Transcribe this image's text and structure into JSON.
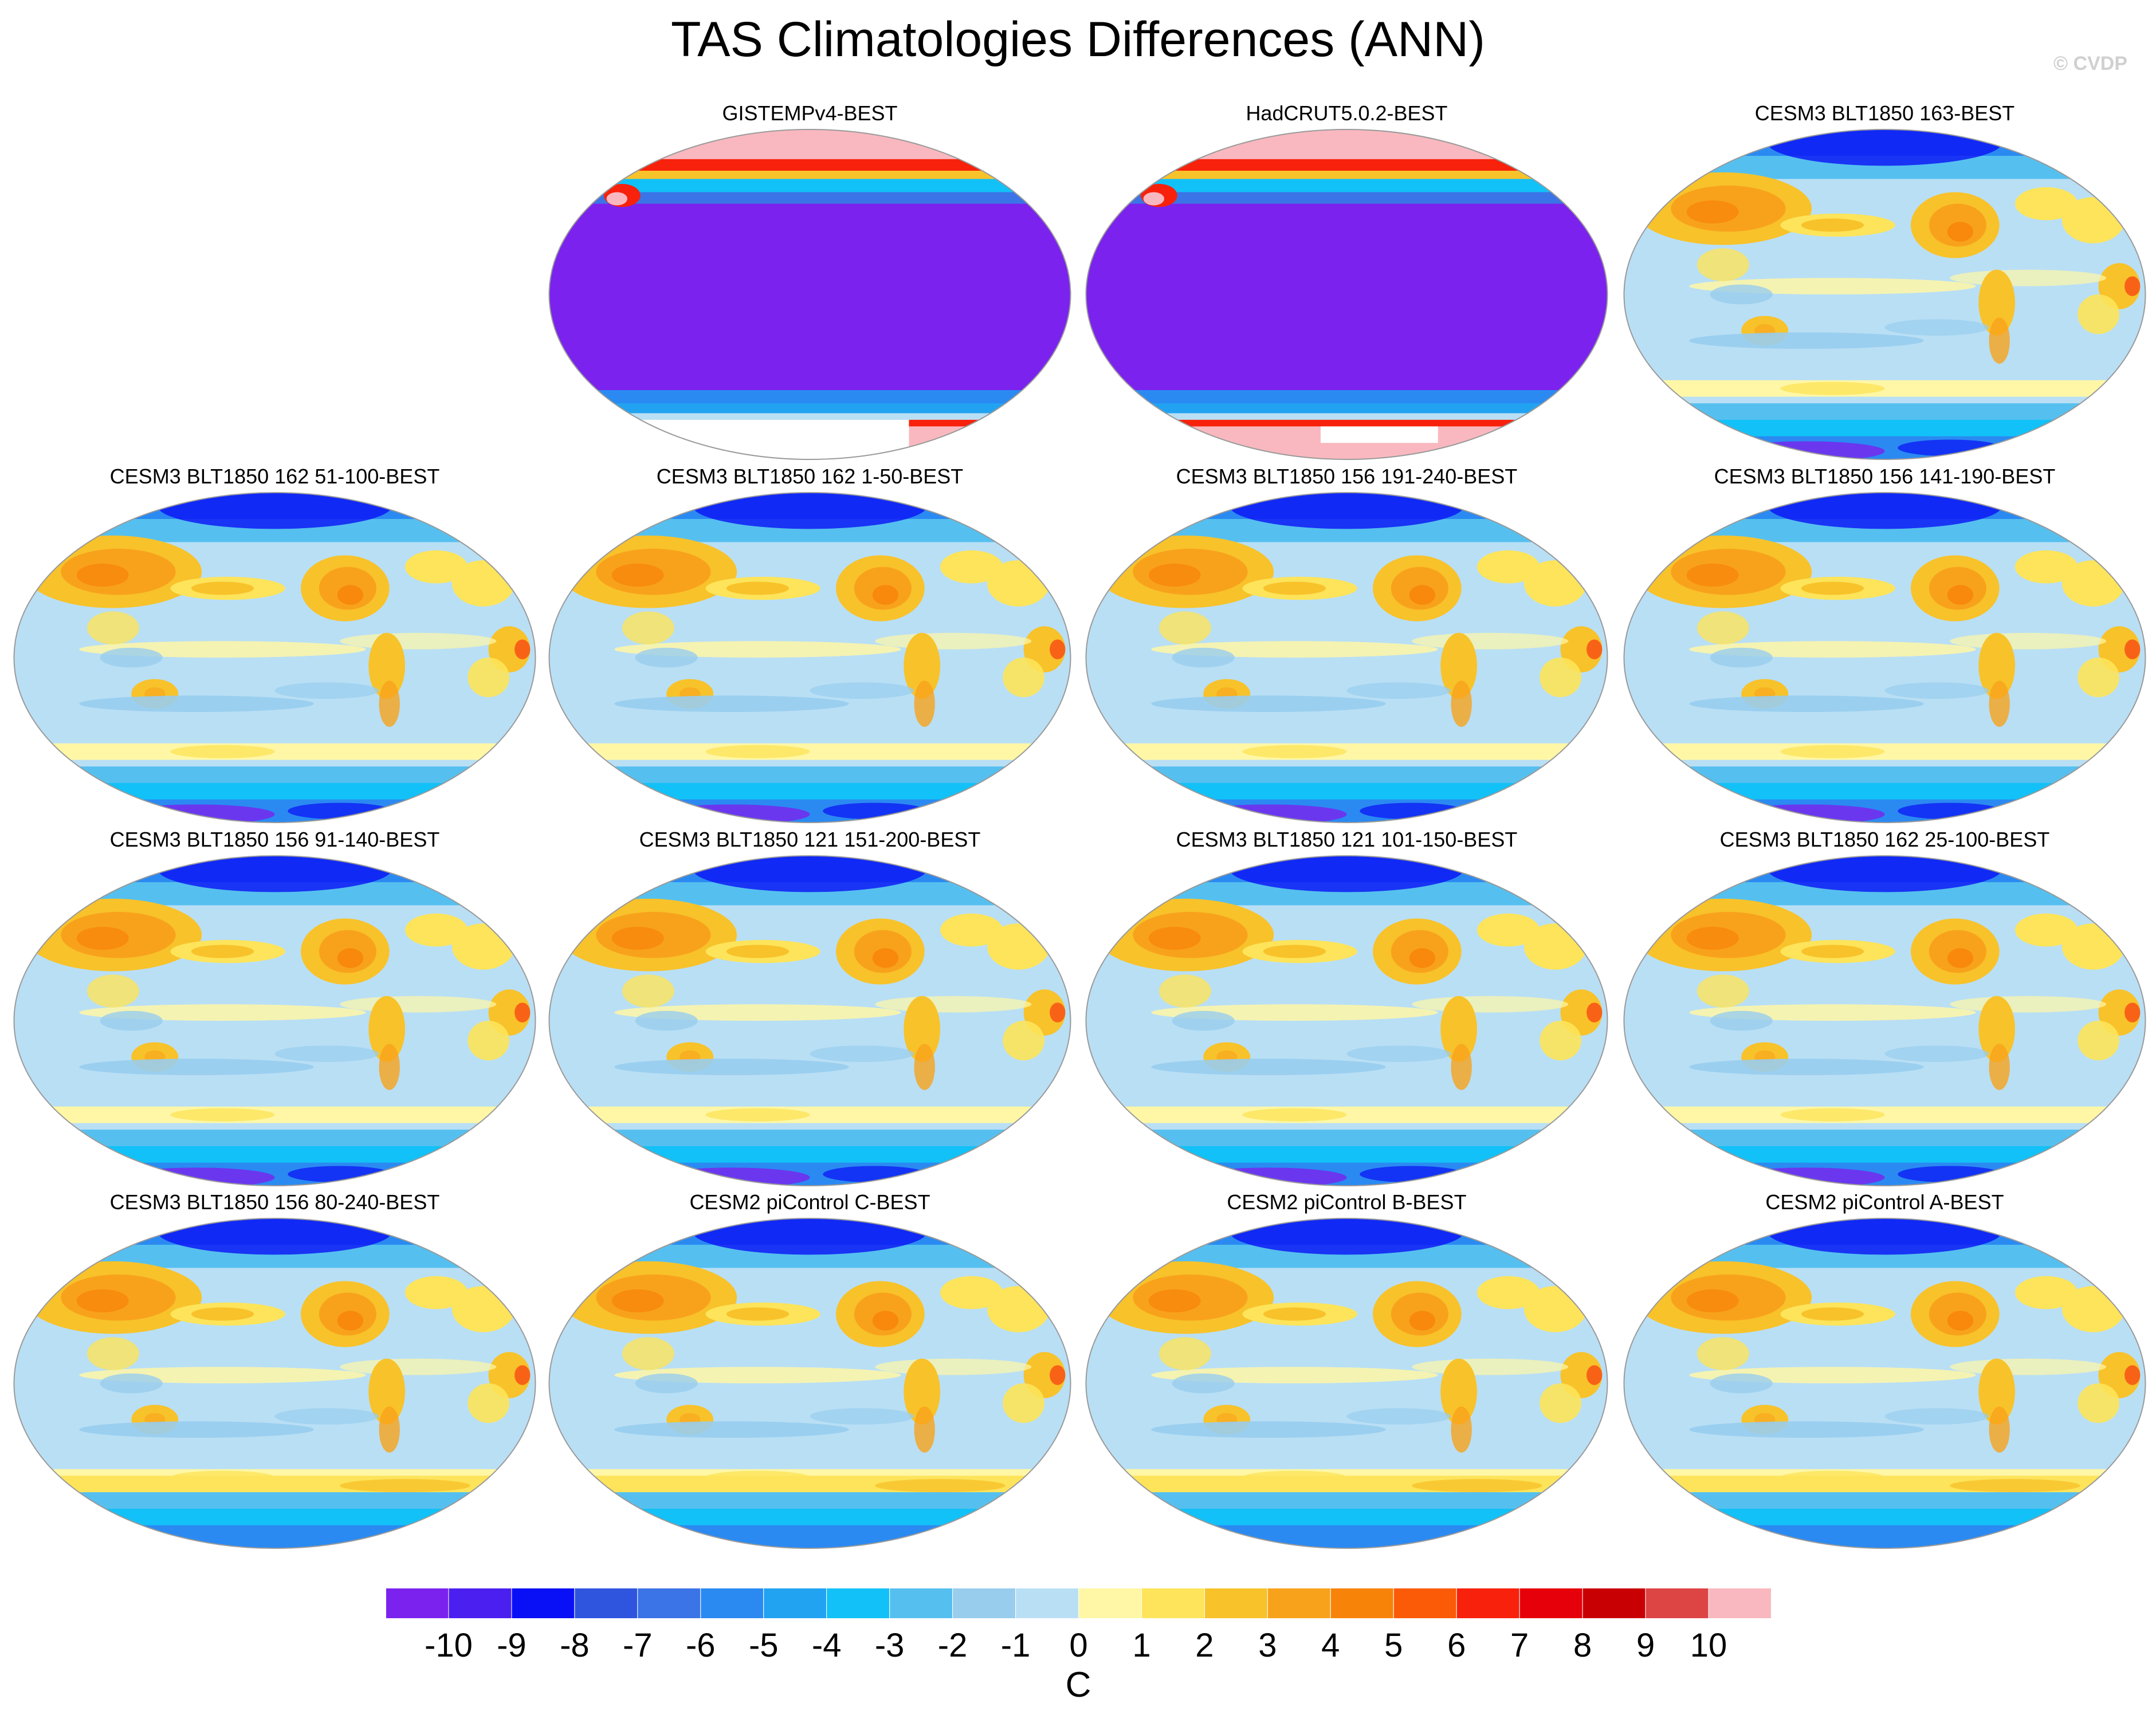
{
  "title": "TAS Climatologies Differences (ANN)",
  "copyright": "© CVDP",
  "chart_data": {
    "type": "heatmap",
    "title": "TAS Climatologies Differences (ANN)",
    "projection": "global map panels",
    "panels": [
      {
        "label": "GISTEMPv4-BEST",
        "style": "mask"
      },
      {
        "label": "HadCRUT5.0.2-BEST",
        "style": "mask"
      },
      {
        "label": "CESM3 BLT1850 163-BEST",
        "style": "model"
      },
      {
        "label": "CESM3 BLT1850 162 51-100-BEST",
        "style": "model"
      },
      {
        "label": "CESM3 BLT1850 162 1-50-BEST",
        "style": "model"
      },
      {
        "label": "CESM3 BLT1850 156 191-240-BEST",
        "style": "model"
      },
      {
        "label": "CESM3 BLT1850 156 141-190-BEST",
        "style": "model"
      },
      {
        "label": "CESM3 BLT1850 156 91-140-BEST",
        "style": "model"
      },
      {
        "label": "CESM3 BLT1850 121 151-200-BEST",
        "style": "model"
      },
      {
        "label": "CESM3 BLT1850 121 101-150-BEST",
        "style": "model"
      },
      {
        "label": "CESM3 BLT1850 162 25-100-BEST",
        "style": "model"
      },
      {
        "label": "CESM3 BLT1850 156 80-240-BEST",
        "style": "model"
      },
      {
        "label": "CESM2 piControl C-BEST",
        "style": "model"
      },
      {
        "label": "CESM2 piControl B-BEST",
        "style": "model"
      },
      {
        "label": "CESM2 piControl A-BEST",
        "style": "model"
      }
    ],
    "colorbar": {
      "units": "C",
      "tick_labels": [
        "-10",
        "-9",
        "-8",
        "-7",
        "-6",
        "-5",
        "-4",
        "-3",
        "-2",
        "-1",
        "0",
        "1",
        "2",
        "3",
        "4",
        "5",
        "6",
        "7",
        "8",
        "9",
        "10"
      ],
      "colors": [
        "#7b22ee",
        "#4b1ff0",
        "#0a10f5",
        "#2f55df",
        "#3b74e6",
        "#2a8af2",
        "#22a3f2",
        "#12c1f7",
        "#55c0ef",
        "#98cdee",
        "#b9dff5",
        "#fff7a6",
        "#fde45a",
        "#f8c22a",
        "#f8a21c",
        "#f88309",
        "#fb5b07",
        "#f8210b",
        "#e60009",
        "#c80004",
        "#dd4444",
        "#f9b8bf"
      ]
    }
  }
}
